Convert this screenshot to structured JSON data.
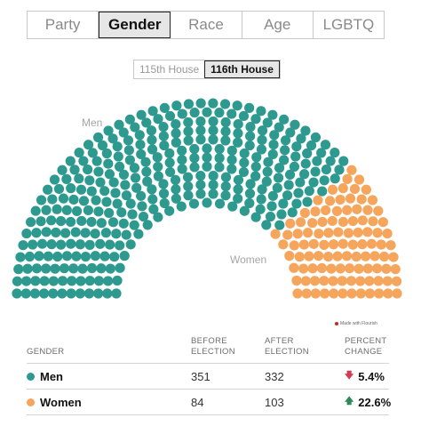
{
  "tabs": [
    {
      "label": "Party",
      "active": false
    },
    {
      "label": "Gender",
      "active": true
    },
    {
      "label": "Race",
      "active": false
    },
    {
      "label": "Age",
      "active": false
    },
    {
      "label": "LGBTQ",
      "active": false
    }
  ],
  "house_toggle": [
    {
      "label": "115th House",
      "active": false
    },
    {
      "label": "116th House",
      "active": true
    }
  ],
  "chart": {
    "men_label": "Men",
    "women_label": "Women",
    "credit": "Made with Flourish"
  },
  "colors": {
    "men": "#2e9a8f",
    "women": "#f6a55d",
    "decrease": "#d23c50",
    "increase": "#2e8b57"
  },
  "table": {
    "headers": {
      "gender": "GENDER",
      "before_1": "BEFORE",
      "before_2": "ELECTION",
      "after_1": "AFTER",
      "after_2": "ELECTION",
      "pct_1": "PERCENT",
      "pct_2": "CHANGE"
    },
    "rows": [
      {
        "name": "Men",
        "before": "351",
        "after": "332",
        "change": "5.4%",
        "direction_icon": "arrow-down-icon"
      },
      {
        "name": "Women",
        "before": "84",
        "after": "103",
        "change": "22.6%",
        "direction_icon": "arrow-up-icon"
      }
    ]
  },
  "chart_data": {
    "type": "parliament",
    "total_seats": 435,
    "series": [
      {
        "name": "Men",
        "seats": 332,
        "color": "#2e9a8f"
      },
      {
        "name": "Women",
        "seats": 103,
        "color": "#f6a55d"
      }
    ]
  }
}
